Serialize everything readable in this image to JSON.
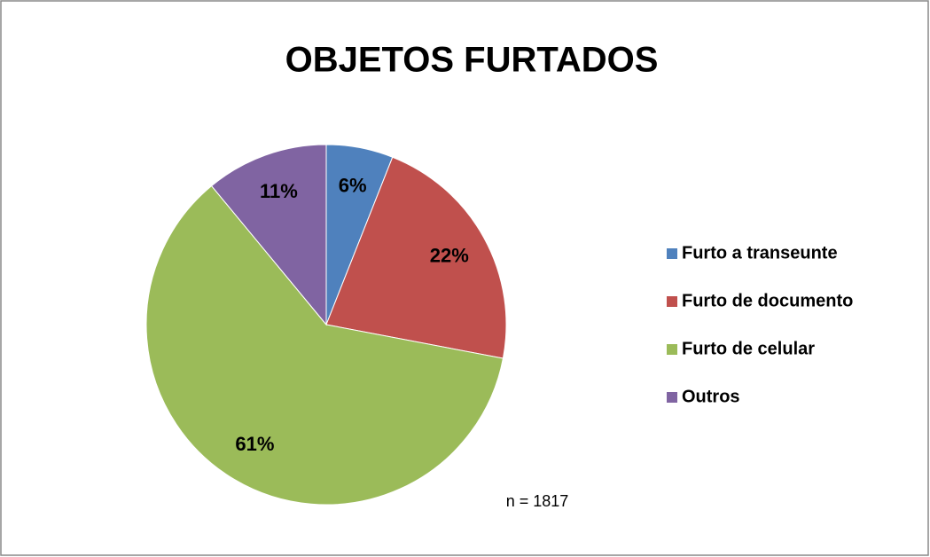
{
  "chart_data": {
    "type": "pie",
    "title": "OBJETOS FURTADOS",
    "categories": [
      "Furto a transeunte",
      "Furto de documento",
      "Furto de celular",
      "Outros"
    ],
    "values": [
      6,
      22,
      61,
      11
    ],
    "value_labels": [
      "6%",
      "22%",
      "61%",
      "11%"
    ],
    "colors": [
      "#4f81bd",
      "#c0504d",
      "#9bbb59",
      "#8064a2"
    ],
    "legend": "right",
    "annotation": "n = 1817"
  }
}
